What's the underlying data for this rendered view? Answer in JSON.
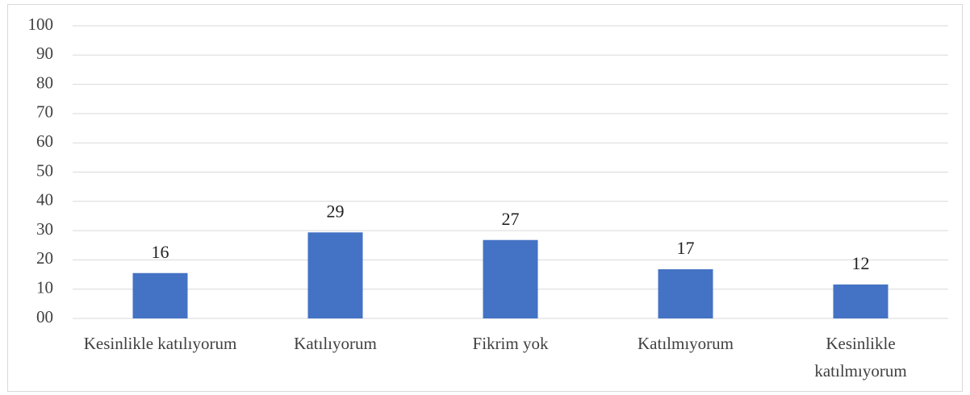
{
  "chart_data": {
    "type": "bar",
    "categories": [
      "Kesinlikle katılıyorum",
      "Katılıyorum",
      "Fikrim yok",
      "Katılmıyorum",
      "Kesinlikle katılmıyorum"
    ],
    "values": [
      15.5,
      29.4,
      26.8,
      16.8,
      11.6
    ],
    "value_labels": [
      "16",
      "29",
      "27",
      "17",
      "12"
    ],
    "color": "#4472c4",
    "ylim": [
      0,
      100
    ],
    "yticks": [
      {
        "value": 0,
        "label": "00"
      },
      10,
      20,
      30,
      40,
      50,
      60,
      70,
      80,
      90,
      100
    ],
    "grid": true
  }
}
